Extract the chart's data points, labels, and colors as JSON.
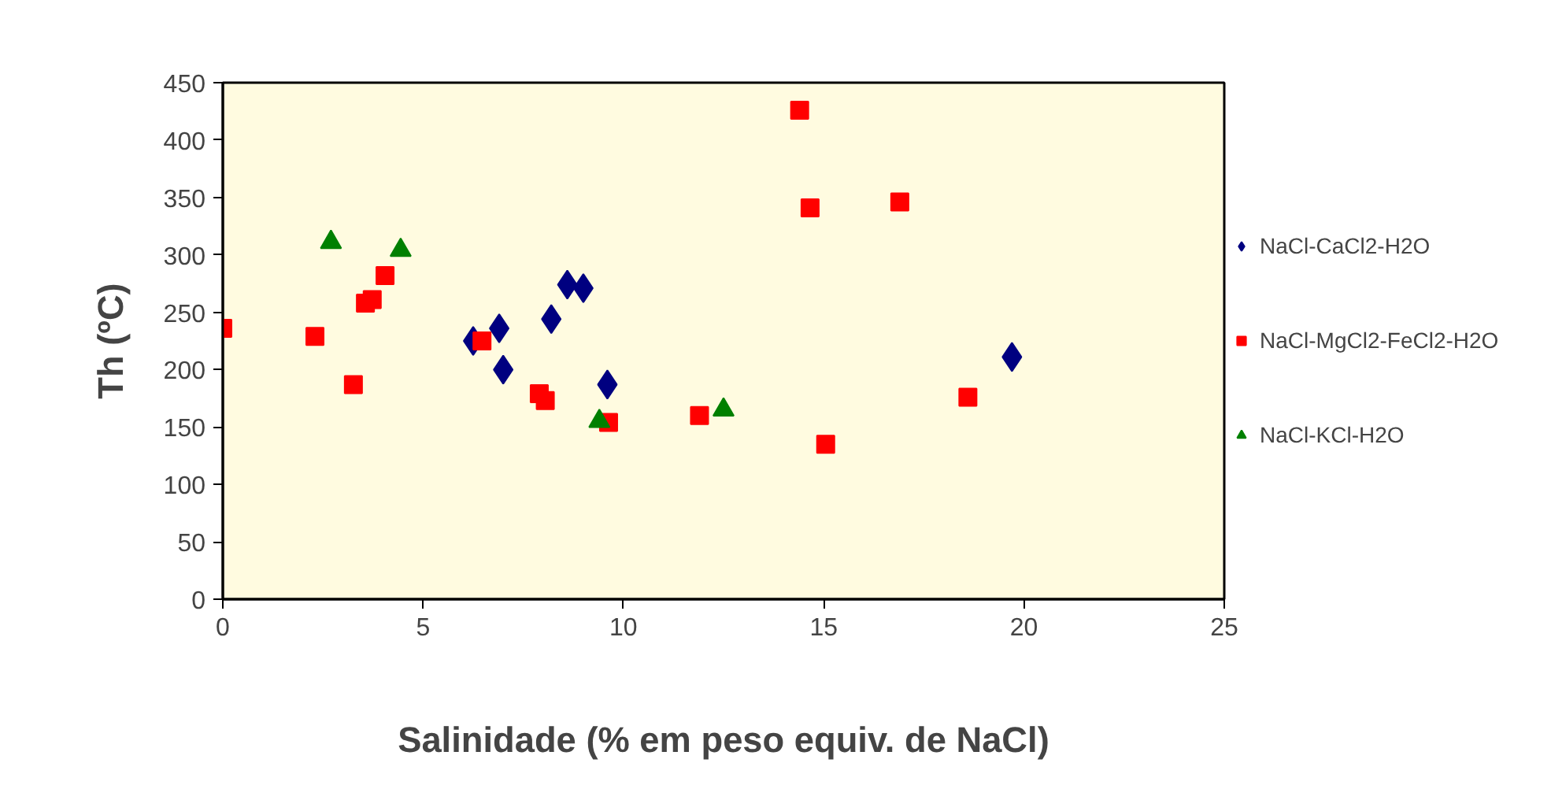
{
  "chart_data": {
    "type": "scatter",
    "xlabel": "Salinidade (% em peso equiv. de NaCl)",
    "ylabel": "Th (ºC)",
    "xlim": [
      0,
      25
    ],
    "xticks": [
      0,
      5,
      10,
      15,
      20,
      25
    ],
    "ylim": [
      0,
      450
    ],
    "yticks": [
      0,
      50,
      100,
      150,
      200,
      250,
      300,
      350,
      400,
      450
    ],
    "grid": false,
    "legend": "right",
    "series": [
      {
        "name": "NaCl-CaCl2-H2O",
        "color": "#000080",
        "marker": "diamond",
        "x": [
          8.6,
          9.0,
          8.2,
          6.9,
          6.25,
          7.0,
          9.6,
          19.7
        ],
        "values": [
          274,
          271,
          244,
          236,
          225,
          200,
          187,
          211
        ]
      },
      {
        "name": "NaCl-MgCl2-FeCl2-H2O",
        "color": "#ff0000",
        "marker": "square",
        "x": [
          0.0,
          2.3,
          3.26,
          3.56,
          3.73,
          4.05,
          6.47,
          7.9,
          8.05,
          9.63,
          11.9,
          15.05,
          14.4,
          14.66,
          16.9,
          18.6
        ],
        "values": [
          236,
          229,
          187,
          258,
          261,
          282,
          225,
          179,
          173,
          154,
          160,
          135,
          426,
          341,
          346,
          176
        ]
      },
      {
        "name": "NaCl-KCl-H2O",
        "color": "#008000",
        "marker": "triangle",
        "x": [
          2.7,
          4.44,
          9.4,
          12.5
        ],
        "values": [
          311,
          304,
          155,
          165
        ]
      }
    ]
  }
}
